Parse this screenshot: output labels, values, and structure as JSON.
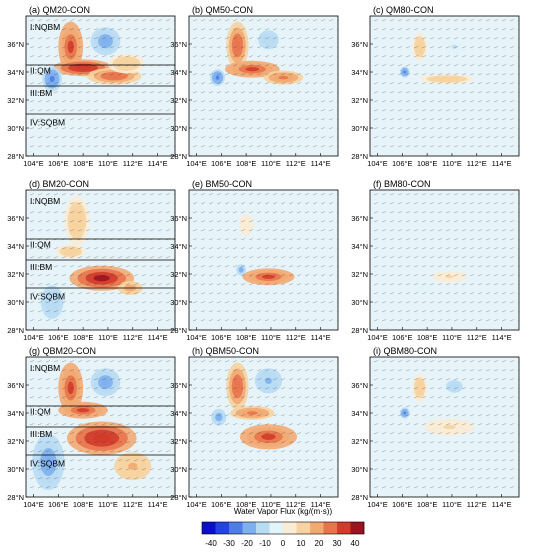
{
  "chart_data": {
    "type": "heatmap",
    "variable": "Water Vapor Flux",
    "colorbar": {
      "label": "Water Vapor Flux (kg/(m·s))",
      "ticks": [
        "-40",
        "-30",
        "-20",
        "-10",
        "0",
        "10",
        "20",
        "30",
        "40"
      ],
      "colors": [
        "#0d0dcc",
        "#2443e0",
        "#4f7de6",
        "#7fb0ee",
        "#b8dcf3",
        "#e2f3f9",
        "#f8ecd6",
        "#f6d3a0",
        "#f2aa72",
        "#e8744c",
        "#d23b2a",
        "#9a1420"
      ]
    },
    "xaxis": {
      "ticks": [
        "104°E",
        "106°E",
        "108°E",
        "110°E",
        "112°E",
        "114°E"
      ],
      "lon": [
        104,
        106,
        108,
        110,
        112,
        114
      ]
    },
    "yaxis": {
      "ticks": [
        "36°N",
        "34°N",
        "32°N",
        "30°N",
        "28°N"
      ],
      "lat": [
        36,
        34,
        32,
        30,
        28
      ]
    },
    "extent": {
      "lon": [
        103.4,
        115.4
      ],
      "lat": [
        28,
        38
      ]
    },
    "panels": [
      {
        "title": "(a) QM20-CON",
        "regions": [
          "I:NQBM",
          "II:QM",
          "III:BM",
          "IV:SQBM"
        ],
        "blobs": [
          {
            "lon": 107.0,
            "lat": 35.8,
            "rx": 1.0,
            "ry": 1.8,
            "value": 32
          },
          {
            "lon": 108.0,
            "lat": 34.3,
            "rx": 2.4,
            "ry": 0.6,
            "value": 36
          },
          {
            "lon": 110.5,
            "lat": 33.7,
            "rx": 2.2,
            "ry": 0.6,
            "value": 28
          },
          {
            "lon": 109.8,
            "lat": 36.2,
            "rx": 1.2,
            "ry": 1.0,
            "value": -18
          },
          {
            "lon": 105.5,
            "lat": 33.5,
            "rx": 0.8,
            "ry": 0.9,
            "value": -22
          },
          {
            "lon": 111.5,
            "lat": 34.6,
            "rx": 1.5,
            "ry": 0.7,
            "value": 14
          }
        ]
      },
      {
        "title": "(b) QM50-CON",
        "regions": [],
        "blobs": [
          {
            "lon": 107.3,
            "lat": 35.9,
            "rx": 0.9,
            "ry": 1.7,
            "value": 28
          },
          {
            "lon": 108.5,
            "lat": 34.2,
            "rx": 2.2,
            "ry": 0.6,
            "value": 30
          },
          {
            "lon": 111.0,
            "lat": 33.6,
            "rx": 1.6,
            "ry": 0.5,
            "value": 22
          },
          {
            "lon": 109.8,
            "lat": 36.3,
            "rx": 1.1,
            "ry": 0.9,
            "value": -14
          },
          {
            "lon": 105.7,
            "lat": 33.6,
            "rx": 0.6,
            "ry": 0.6,
            "value": -22
          }
        ]
      },
      {
        "title": "(c) QM80-CON",
        "regions": [],
        "blobs": [
          {
            "lon": 107.4,
            "lat": 35.8,
            "rx": 0.6,
            "ry": 1.0,
            "value": 12
          },
          {
            "lon": 109.6,
            "lat": 33.5,
            "rx": 2.2,
            "ry": 0.35,
            "value": 14
          },
          {
            "lon": 106.2,
            "lat": 34.0,
            "rx": 0.4,
            "ry": 0.4,
            "value": -24
          },
          {
            "lon": 110.2,
            "lat": 35.8,
            "rx": 0.9,
            "ry": 0.6,
            "value": -8
          }
        ]
      },
      {
        "title": "(d) BM20-CON",
        "regions": [
          "I:NQBM",
          "II:QM",
          "III:BM",
          "IV:SQBM"
        ],
        "blobs": [
          {
            "lon": 109.5,
            "lat": 31.7,
            "rx": 2.6,
            "ry": 0.9,
            "value": 38
          },
          {
            "lon": 107.5,
            "lat": 35.8,
            "rx": 1.0,
            "ry": 1.8,
            "value": 12
          },
          {
            "lon": 105.5,
            "lat": 30.0,
            "rx": 1.2,
            "ry": 1.6,
            "value": -14
          },
          {
            "lon": 107.0,
            "lat": 33.6,
            "rx": 1.2,
            "ry": 0.5,
            "value": 14
          },
          {
            "lon": 111.8,
            "lat": 31.0,
            "rx": 1.0,
            "ry": 0.5,
            "value": 18
          }
        ]
      },
      {
        "title": "(e) BM50-CON",
        "regions": [],
        "blobs": [
          {
            "lon": 109.8,
            "lat": 31.8,
            "rx": 2.1,
            "ry": 0.6,
            "value": 30
          },
          {
            "lon": 107.6,
            "lat": 32.3,
            "rx": 0.4,
            "ry": 0.4,
            "value": -20
          },
          {
            "lon": 108.0,
            "lat": 35.5,
            "rx": 0.8,
            "ry": 1.0,
            "value": 6
          }
        ]
      },
      {
        "title": "(f) BM80-CON",
        "regions": [],
        "blobs": [
          {
            "lon": 109.8,
            "lat": 31.8,
            "rx": 1.4,
            "ry": 0.4,
            "value": 8
          },
          {
            "lon": 107.8,
            "lat": 31.0,
            "rx": 0.6,
            "ry": 0.5,
            "value": -6
          }
        ]
      },
      {
        "title": "(g) QBM20-CON",
        "regions": [
          "I:NQBM",
          "II:QM",
          "III:BM",
          "IV:SQBM"
        ],
        "blobs": [
          {
            "lon": 107.0,
            "lat": 35.8,
            "rx": 1.0,
            "ry": 1.8,
            "value": 32
          },
          {
            "lon": 109.5,
            "lat": 32.2,
            "rx": 2.8,
            "ry": 1.2,
            "value": 36
          },
          {
            "lon": 108.0,
            "lat": 34.2,
            "rx": 2.0,
            "ry": 0.6,
            "value": 30
          },
          {
            "lon": 109.8,
            "lat": 36.2,
            "rx": 1.2,
            "ry": 1.0,
            "value": -20
          },
          {
            "lon": 105.2,
            "lat": 30.5,
            "rx": 1.3,
            "ry": 2.0,
            "value": -18
          },
          {
            "lon": 112.0,
            "lat": 30.2,
            "rx": 1.5,
            "ry": 1.0,
            "value": 16
          }
        ]
      },
      {
        "title": "(h) QBM50-CON",
        "regions": [],
        "blobs": [
          {
            "lon": 107.3,
            "lat": 35.9,
            "rx": 0.9,
            "ry": 1.7,
            "value": 28
          },
          {
            "lon": 109.8,
            "lat": 32.3,
            "rx": 2.3,
            "ry": 0.9,
            "value": 30
          },
          {
            "lon": 108.5,
            "lat": 34.0,
            "rx": 1.8,
            "ry": 0.5,
            "value": 24
          },
          {
            "lon": 109.8,
            "lat": 36.3,
            "rx": 1.1,
            "ry": 0.9,
            "value": -16
          },
          {
            "lon": 105.8,
            "lat": 33.7,
            "rx": 0.6,
            "ry": 0.6,
            "value": -20
          }
        ]
      },
      {
        "title": "(i) QBM80-CON",
        "regions": [],
        "blobs": [
          {
            "lon": 107.4,
            "lat": 35.8,
            "rx": 0.6,
            "ry": 1.0,
            "value": 12
          },
          {
            "lon": 109.8,
            "lat": 33.0,
            "rx": 2.0,
            "ry": 0.6,
            "value": 8
          },
          {
            "lon": 106.2,
            "lat": 34.0,
            "rx": 0.4,
            "ry": 0.4,
            "value": -22
          },
          {
            "lon": 110.2,
            "lat": 35.9,
            "rx": 0.9,
            "ry": 0.6,
            "value": -12
          }
        ]
      }
    ],
    "region_boundaries_lat": [
      34.5,
      33.0,
      31.0
    ]
  }
}
